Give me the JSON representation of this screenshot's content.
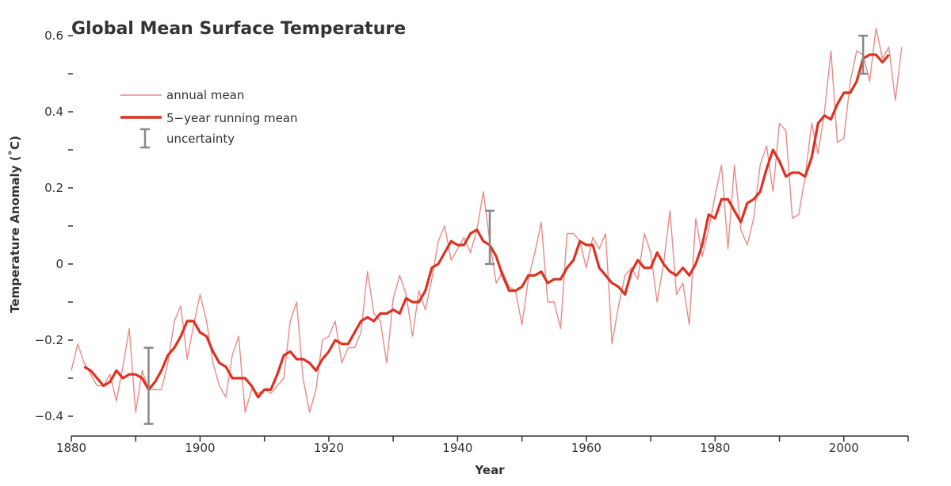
{
  "chart_data": {
    "type": "line",
    "title": "Global Mean Surface Temperature",
    "xlabel": "Year",
    "ylabel": "Temperature Anomaly (˚C)",
    "xlim": [
      1880,
      2010
    ],
    "ylim": [
      -0.45,
      0.62
    ],
    "x_ticks": [
      1880,
      1890,
      1900,
      1910,
      1920,
      1930,
      1940,
      1950,
      1960,
      1970,
      1980,
      1990,
      2000,
      2010
    ],
    "x_tick_labels": [
      "1880",
      "1900",
      "1920",
      "1940",
      "1960",
      "1980",
      "2000"
    ],
    "y_ticks": [
      -0.4,
      -0.3,
      -0.2,
      -0.1,
      0,
      0.1,
      0.2,
      0.3,
      0.4,
      0.5,
      0.6
    ],
    "y_tick_labels": [
      "−0.4",
      "−0.2",
      "0",
      "0.2",
      "0.4",
      "0.6"
    ],
    "legend": {
      "placement": "top-left",
      "entries": [
        "annual mean",
        "5−year running mean",
        "uncertainty"
      ]
    },
    "colors": {
      "annual": "#e88a88",
      "running": "#dc3223",
      "uncertainty": "#888888",
      "axis": "#333333"
    },
    "series": [
      {
        "name": "annual mean",
        "x_start": 1880,
        "values": [
          -0.28,
          -0.21,
          -0.26,
          -0.29,
          -0.32,
          -0.32,
          -0.29,
          -0.36,
          -0.27,
          -0.17,
          -0.39,
          -0.28,
          -0.33,
          -0.33,
          -0.33,
          -0.26,
          -0.15,
          -0.11,
          -0.25,
          -0.16,
          -0.08,
          -0.15,
          -0.26,
          -0.32,
          -0.35,
          -0.24,
          -0.19,
          -0.39,
          -0.33,
          -0.34,
          -0.33,
          -0.34,
          -0.32,
          -0.3,
          -0.15,
          -0.1,
          -0.3,
          -0.39,
          -0.33,
          -0.2,
          -0.19,
          -0.15,
          -0.26,
          -0.22,
          -0.22,
          -0.18,
          -0.02,
          -0.13,
          -0.15,
          -0.26,
          -0.09,
          -0.03,
          -0.08,
          -0.19,
          -0.07,
          -0.12,
          -0.04,
          0.06,
          0.1,
          0.01,
          0.04,
          0.07,
          0.03,
          0.09,
          0.19,
          0.06,
          -0.05,
          -0.02,
          -0.06,
          -0.07,
          -0.16,
          -0.04,
          0.03,
          0.11,
          -0.1,
          -0.1,
          -0.17,
          0.08,
          0.08,
          0.06,
          -0.01,
          0.07,
          0.04,
          0.08,
          -0.21,
          -0.11,
          -0.03,
          -0.01,
          -0.04,
          0.08,
          0.03,
          -0.1,
          0.0,
          0.14,
          -0.08,
          -0.05,
          -0.16,
          0.12,
          0.02,
          0.09,
          0.18,
          0.26,
          0.04,
          0.26,
          0.09,
          0.05,
          0.12,
          0.26,
          0.31,
          0.19,
          0.37,
          0.35,
          0.12,
          0.13,
          0.23,
          0.37,
          0.29,
          0.4,
          0.56,
          0.32,
          0.33,
          0.48,
          0.56,
          0.55,
          0.48,
          0.62,
          0.54,
          0.57,
          0.43,
          0.57
        ]
      },
      {
        "name": "5−year running mean",
        "x_start": 1882,
        "values": [
          -0.27,
          -0.28,
          -0.3,
          -0.32,
          -0.31,
          -0.28,
          -0.3,
          -0.29,
          -0.29,
          -0.3,
          -0.33,
          -0.31,
          -0.28,
          -0.24,
          -0.22,
          -0.19,
          -0.15,
          -0.15,
          -0.18,
          -0.19,
          -0.23,
          -0.26,
          -0.27,
          -0.3,
          -0.3,
          -0.3,
          -0.32,
          -0.35,
          -0.33,
          -0.33,
          -0.29,
          -0.24,
          -0.23,
          -0.25,
          -0.25,
          -0.26,
          -0.28,
          -0.25,
          -0.23,
          -0.2,
          -0.21,
          -0.21,
          -0.18,
          -0.15,
          -0.14,
          -0.15,
          -0.13,
          -0.13,
          -0.12,
          -0.13,
          -0.09,
          -0.1,
          -0.1,
          -0.07,
          -0.01,
          0.0,
          0.03,
          0.06,
          0.05,
          0.05,
          0.08,
          0.09,
          0.06,
          0.05,
          0.02,
          -0.03,
          -0.07,
          -0.07,
          -0.06,
          -0.03,
          -0.03,
          -0.02,
          -0.05,
          -0.04,
          -0.04,
          -0.01,
          0.01,
          0.06,
          0.05,
          0.05,
          -0.01,
          -0.03,
          -0.05,
          -0.06,
          -0.08,
          -0.02,
          0.01,
          -0.01,
          -0.01,
          0.03,
          0.0,
          -0.02,
          -0.03,
          -0.01,
          -0.03,
          0.0,
          0.05,
          0.13,
          0.12,
          0.17,
          0.17,
          0.14,
          0.11,
          0.16,
          0.17,
          0.19,
          0.25,
          0.3,
          0.27,
          0.23,
          0.24,
          0.24,
          0.23,
          0.28,
          0.37,
          0.39,
          0.38,
          0.42,
          0.45,
          0.45,
          0.48,
          0.54,
          0.55,
          0.55,
          0.53,
          0.55
        ]
      }
    ],
    "uncertainty": [
      {
        "year": 1892,
        "center": -0.32,
        "half_width": 0.1
      },
      {
        "year": 1945,
        "center": 0.07,
        "half_width": 0.07
      },
      {
        "year": 2003,
        "center": 0.55,
        "half_width": 0.05
      }
    ]
  }
}
